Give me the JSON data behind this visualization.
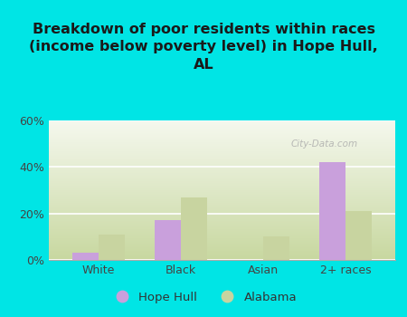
{
  "categories": [
    "White",
    "Black",
    "Asian",
    "2+ races"
  ],
  "hope_hull": [
    3,
    17,
    0,
    42
  ],
  "alabama": [
    11,
    27,
    10,
    21
  ],
  "hope_hull_color": "#c9a0dc",
  "alabama_color": "#c8d4a0",
  "title": "Breakdown of poor residents within races\n(income below poverty level) in Hope Hull,\nAL",
  "title_fontsize": 11.5,
  "title_fontweight": "bold",
  "ylim": [
    0,
    60
  ],
  "yticks": [
    0,
    20,
    40,
    60
  ],
  "yticklabels": [
    "0%",
    "20%",
    "40%",
    "60%"
  ],
  "background_outer": "#00e5e5",
  "background_plot_bottom": "#c8d8a0",
  "background_plot_top": "#f5f8ee",
  "bar_width": 0.32,
  "legend_labels": [
    "Hope Hull",
    "Alabama"
  ],
  "watermark": "City-Data.com"
}
